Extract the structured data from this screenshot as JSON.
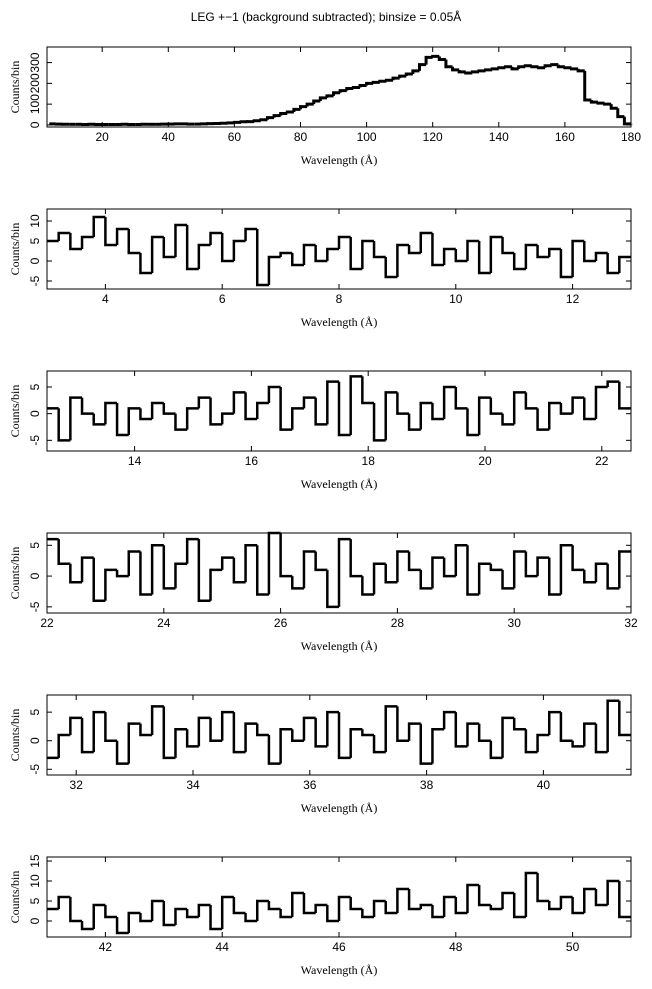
{
  "chart_data": [
    {
      "type": "step",
      "title": "LEG +−1 (background subtracted); binsize = 0.05Å",
      "xlabel": "Wavelength (Å)",
      "ylabel": "Counts/bin",
      "color": "#000000",
      "xlim": [
        3.3,
        180
      ],
      "ylim": [
        -10,
        375
      ],
      "xticks": [
        20,
        40,
        60,
        80,
        100,
        120,
        140,
        160,
        180
      ],
      "yticks": [
        0,
        100,
        200,
        300
      ],
      "x": [
        4,
        6,
        8,
        10,
        12,
        14,
        16,
        18,
        20,
        22,
        24,
        26,
        28,
        30,
        32,
        34,
        36,
        38,
        40,
        42,
        44,
        46,
        48,
        50,
        52,
        54,
        56,
        58,
        60,
        62,
        64,
        66,
        68,
        70,
        72,
        74,
        76,
        78,
        80,
        82,
        84,
        86,
        88,
        90,
        92,
        94,
        96,
        98,
        100,
        102,
        104,
        106,
        108,
        110,
        112,
        114,
        116,
        118,
        120,
        122,
        124,
        126,
        128,
        130,
        132,
        134,
        136,
        138,
        140,
        142,
        144,
        146,
        148,
        150,
        152,
        154,
        156,
        158,
        160,
        162,
        164,
        166,
        168,
        170,
        172,
        174,
        176,
        178,
        180
      ],
      "values": [
        5,
        4,
        3,
        3,
        3,
        2,
        3,
        2,
        2,
        2,
        2,
        3,
        2,
        2,
        3,
        3,
        3,
        4,
        4,
        5,
        5,
        4,
        4,
        5,
        6,
        7,
        8,
        10,
        12,
        15,
        16,
        20,
        25,
        35,
        45,
        55,
        62,
        75,
        88,
        100,
        115,
        130,
        140,
        155,
        165,
        175,
        180,
        190,
        200,
        205,
        210,
        215,
        225,
        235,
        245,
        260,
        290,
        325,
        330,
        315,
        280,
        265,
        255,
        250,
        255,
        260,
        265,
        270,
        275,
        280,
        270,
        280,
        285,
        280,
        275,
        285,
        290,
        280,
        275,
        270,
        260,
        120,
        110,
        105,
        100,
        80,
        40,
        5,
        2
      ]
    },
    {
      "type": "step",
      "xlabel": "Wavelength (Å)",
      "ylabel": "Counts/bin",
      "color": "#000000",
      "xlim": [
        3,
        13
      ],
      "ylim": [
        -7,
        13
      ],
      "xticks": [
        4,
        6,
        8,
        10,
        12
      ],
      "yticks": [
        -5,
        0,
        5,
        10
      ],
      "x": [
        3,
        3.2,
        3.4,
        3.6,
        3.8,
        4,
        4.2,
        4.4,
        4.6,
        4.8,
        5,
        5.2,
        5.4,
        5.6,
        5.8,
        6,
        6.2,
        6.4,
        6.6,
        6.8,
        7,
        7.2,
        7.4,
        7.6,
        7.8,
        8,
        8.2,
        8.4,
        8.6,
        8.8,
        9,
        9.2,
        9.4,
        9.6,
        9.8,
        10,
        10.2,
        10.4,
        10.6,
        10.8,
        11,
        11.2,
        11.4,
        11.6,
        11.8,
        12,
        12.2,
        12.4,
        12.6,
        12.8
      ],
      "values": [
        5,
        7,
        3,
        6,
        11,
        4,
        8,
        2,
        -3,
        6,
        1,
        9,
        -2,
        4,
        7,
        0,
        5,
        8,
        -6,
        1,
        2,
        -1,
        4,
        0,
        3,
        6,
        -2,
        5,
        1,
        -4,
        4,
        2,
        7,
        -1,
        3,
        0,
        5,
        -3,
        6,
        2,
        -2,
        4,
        1,
        3,
        -4,
        5,
        0,
        2,
        -3,
        1
      ]
    },
    {
      "type": "step",
      "xlabel": "Wavelength (Å)",
      "ylabel": "Counts/bin",
      "color": "#000000",
      "xlim": [
        12.5,
        22.5
      ],
      "ylim": [
        -7,
        8
      ],
      "xticks": [
        14,
        16,
        18,
        20,
        22
      ],
      "yticks": [
        -5,
        0,
        5
      ],
      "x": [
        12.5,
        12.7,
        12.9,
        13.1,
        13.3,
        13.5,
        13.7,
        13.9,
        14.1,
        14.3,
        14.5,
        14.7,
        14.9,
        15.1,
        15.3,
        15.5,
        15.7,
        15.9,
        16.1,
        16.3,
        16.5,
        16.7,
        16.9,
        17.1,
        17.3,
        17.5,
        17.7,
        17.9,
        18.1,
        18.3,
        18.5,
        18.7,
        18.9,
        19.1,
        19.3,
        19.5,
        19.7,
        19.9,
        20.1,
        20.3,
        20.5,
        20.7,
        20.9,
        21.1,
        21.3,
        21.5,
        21.7,
        21.9,
        22.1,
        22.3
      ],
      "values": [
        1,
        -5,
        3,
        0,
        -2,
        2,
        -4,
        1,
        -1,
        2,
        0,
        -3,
        1,
        3,
        -2,
        0,
        4,
        -1,
        2,
        5,
        -3,
        1,
        3,
        -2,
        6,
        -4,
        7,
        2,
        -5,
        4,
        0,
        -3,
        2,
        -1,
        5,
        1,
        -4,
        3,
        0,
        -2,
        4,
        1,
        -3,
        2,
        0,
        3,
        -1,
        5,
        6,
        1
      ]
    },
    {
      "type": "step",
      "xlabel": "Wavelength (Å)",
      "ylabel": "Counts/bin",
      "color": "#000000",
      "xlim": [
        22,
        32
      ],
      "ylim": [
        -6,
        7
      ],
      "xticks": [
        22,
        24,
        26,
        28,
        30,
        32
      ],
      "yticks": [
        -5,
        0,
        5
      ],
      "x": [
        22,
        22.2,
        22.4,
        22.6,
        22.8,
        23,
        23.2,
        23.4,
        23.6,
        23.8,
        24,
        24.2,
        24.4,
        24.6,
        24.8,
        25,
        25.2,
        25.4,
        25.6,
        25.8,
        26,
        26.2,
        26.4,
        26.6,
        26.8,
        27,
        27.2,
        27.4,
        27.6,
        27.8,
        28,
        28.2,
        28.4,
        28.6,
        28.8,
        29,
        29.2,
        29.4,
        29.6,
        29.8,
        30,
        30.2,
        30.4,
        30.6,
        30.8,
        31,
        31.2,
        31.4,
        31.6,
        31.8
      ],
      "values": [
        6,
        2,
        -1,
        3,
        -4,
        1,
        0,
        4,
        -3,
        5,
        -2,
        2,
        6,
        -4,
        1,
        3,
        -1,
        5,
        -3,
        7,
        0,
        -2,
        4,
        1,
        -5,
        6,
        0,
        -3,
        2,
        -1,
        4,
        1,
        -2,
        3,
        0,
        5,
        -3,
        2,
        1,
        -2,
        4,
        0,
        3,
        -3,
        5,
        1,
        -1,
        2,
        -2,
        4
      ]
    },
    {
      "type": "step",
      "xlabel": "Wavelength (Å)",
      "ylabel": "Counts/bin",
      "color": "#000000",
      "xlim": [
        31.5,
        41.5
      ],
      "ylim": [
        -6,
        8
      ],
      "xticks": [
        32,
        34,
        36,
        38,
        40
      ],
      "yticks": [
        -5,
        0,
        5
      ],
      "x": [
        31.5,
        31.7,
        31.9,
        32.1,
        32.3,
        32.5,
        32.7,
        32.9,
        33.1,
        33.3,
        33.5,
        33.7,
        33.9,
        34.1,
        34.3,
        34.5,
        34.7,
        34.9,
        35.1,
        35.3,
        35.5,
        35.7,
        35.9,
        36.1,
        36.3,
        36.5,
        36.7,
        36.9,
        37.1,
        37.3,
        37.5,
        37.7,
        37.9,
        38.1,
        38.3,
        38.5,
        38.7,
        38.9,
        39.1,
        39.3,
        39.5,
        39.7,
        39.9,
        40.1,
        40.3,
        40.5,
        40.7,
        40.9,
        41.1,
        41.3
      ],
      "values": [
        -3,
        1,
        4,
        -2,
        5,
        0,
        -4,
        3,
        1,
        6,
        -3,
        2,
        -1,
        4,
        0,
        5,
        -2,
        3,
        1,
        -4,
        2,
        0,
        4,
        -1,
        5,
        -3,
        2,
        1,
        -2,
        6,
        0,
        3,
        -4,
        2,
        5,
        -1,
        3,
        0,
        -3,
        4,
        2,
        -2,
        1,
        5,
        0,
        -1,
        3,
        -2,
        7,
        1
      ]
    },
    {
      "type": "step",
      "xlabel": "Wavelength (Å)",
      "ylabel": "Counts/bin",
      "color": "#000000",
      "xlim": [
        41,
        51
      ],
      "ylim": [
        -4,
        16
      ],
      "xticks": [
        42,
        44,
        46,
        48,
        50
      ],
      "yticks": [
        0,
        5,
        10,
        15
      ],
      "x": [
        41,
        41.2,
        41.4,
        41.6,
        41.8,
        42,
        42.2,
        42.4,
        42.6,
        42.8,
        43,
        43.2,
        43.4,
        43.6,
        43.8,
        44,
        44.2,
        44.4,
        44.6,
        44.8,
        45,
        45.2,
        45.4,
        45.6,
        45.8,
        46,
        46.2,
        46.4,
        46.6,
        46.8,
        47,
        47.2,
        47.4,
        47.6,
        47.8,
        48,
        48.2,
        48.4,
        48.6,
        48.8,
        49,
        49.2,
        49.4,
        49.6,
        49.8,
        50,
        50.2,
        50.4,
        50.6,
        50.8
      ],
      "values": [
        3,
        6,
        0,
        -2,
        4,
        1,
        -3,
        2,
        0,
        5,
        -1,
        3,
        1,
        4,
        -2,
        6,
        2,
        0,
        5,
        3,
        1,
        7,
        2,
        4,
        0,
        6,
        3,
        1,
        5,
        2,
        8,
        3,
        4,
        1,
        6,
        2,
        9,
        4,
        3,
        7,
        1,
        12,
        5,
        3,
        6,
        2,
        8,
        4,
        10,
        1
      ]
    }
  ]
}
